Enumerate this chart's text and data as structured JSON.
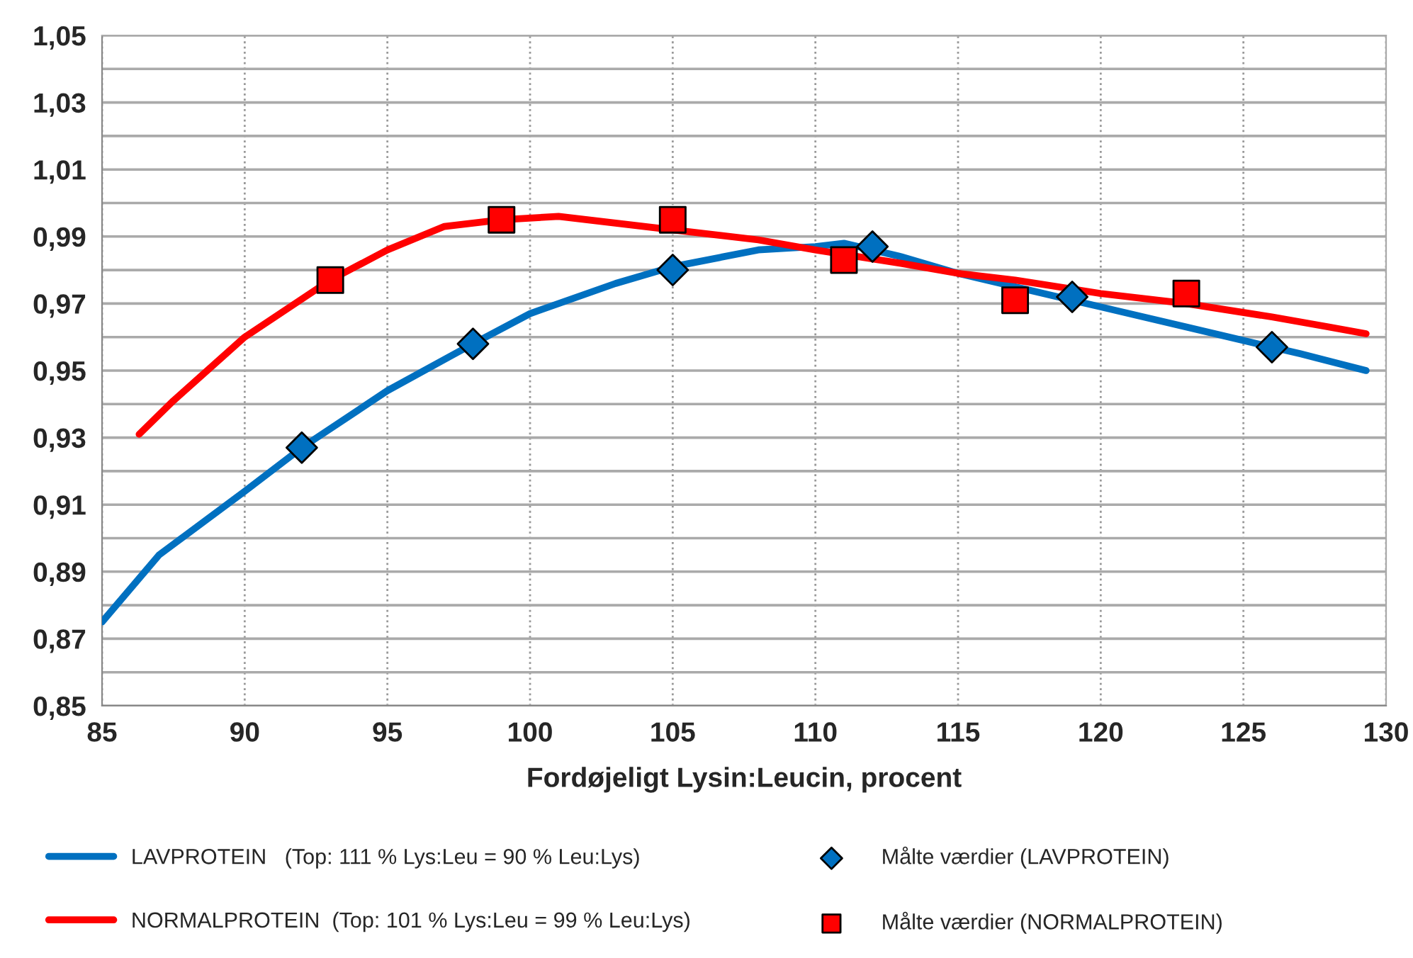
{
  "chart_data": {
    "type": "line",
    "xlabel": "Fordøjeligt Lysin:Leucin, procent",
    "xlim": [
      85,
      130
    ],
    "xticks": [
      85,
      90,
      95,
      100,
      105,
      110,
      115,
      120,
      125,
      130
    ],
    "ylim": [
      0.85,
      1.05
    ],
    "yticks": [
      {
        "value": 0.85,
        "label": "0,85"
      },
      {
        "value": 0.86,
        "label": null
      },
      {
        "value": 0.87,
        "label": "0,87"
      },
      {
        "value": 0.88,
        "label": null
      },
      {
        "value": 0.89,
        "label": "0,89"
      },
      {
        "value": 0.9,
        "label": null
      },
      {
        "value": 0.91,
        "label": "0,91"
      },
      {
        "value": 0.92,
        "label": null
      },
      {
        "value": 0.93,
        "label": "0,93"
      },
      {
        "value": 0.94,
        "label": null
      },
      {
        "value": 0.95,
        "label": "0,95"
      },
      {
        "value": 0.96,
        "label": null
      },
      {
        "value": 0.97,
        "label": "0,97"
      },
      {
        "value": 0.98,
        "label": null
      },
      {
        "value": 0.99,
        "label": "0,99"
      },
      {
        "value": 1.0,
        "label": null
      },
      {
        "value": 1.01,
        "label": "1,01"
      },
      {
        "value": 1.02,
        "label": null
      },
      {
        "value": 1.03,
        "label": "1,03"
      },
      {
        "value": 1.04,
        "label": null
      },
      {
        "value": 1.05,
        "label": "1,05"
      }
    ],
    "grid": true,
    "legend": "bottom",
    "series": [
      {
        "name": "LAVPROTEIN   (Top: 111 % Lys:Leu = 90 % Leu:Lys)",
        "marker": "none",
        "color": "#0070c0",
        "x": [
          85,
          87,
          90,
          92,
          95,
          98,
          100,
          103,
          105,
          108,
          110,
          111,
          113,
          115,
          118,
          120,
          123,
          125,
          127,
          129.3
        ],
        "values": [
          0.875,
          0.895,
          0.914,
          0.927,
          0.944,
          0.958,
          0.967,
          0.976,
          0.981,
          0.986,
          0.987,
          0.988,
          0.984,
          0.979,
          0.973,
          0.969,
          0.963,
          0.959,
          0.955,
          0.95
        ]
      },
      {
        "name": "NORMALPROTEIN  (Top: 101 % Lys:Leu = 99 % Leu:Lys)",
        "marker": "none",
        "color": "#ff0000",
        "x": [
          86.3,
          87.5,
          90,
          93,
          95,
          97,
          99,
          101,
          103,
          105,
          108,
          110,
          113,
          115,
          117,
          120,
          123,
          126,
          128,
          129.3
        ],
        "values": [
          0.931,
          0.941,
          0.96,
          0.977,
          0.986,
          0.993,
          0.995,
          0.996,
          0.994,
          0.992,
          0.989,
          0.986,
          0.982,
          0.979,
          0.977,
          0.973,
          0.97,
          0.966,
          0.963,
          0.961
        ]
      },
      {
        "name": "Målte værdier (LAVPROTEIN)",
        "type": "scatter",
        "marker": "diamond",
        "color": "#0070c0",
        "x": [
          92,
          98,
          105,
          112,
          119,
          126
        ],
        "values": [
          0.927,
          0.958,
          0.98,
          0.987,
          0.972,
          0.957
        ]
      },
      {
        "name": "Målte værdier (NORMALPROTEIN)",
        "type": "scatter",
        "marker": "square",
        "color": "#ff0000",
        "x": [
          93,
          99,
          105,
          111,
          117,
          123
        ],
        "values": [
          0.977,
          0.995,
          0.995,
          0.983,
          0.971,
          0.973
        ]
      }
    ]
  }
}
